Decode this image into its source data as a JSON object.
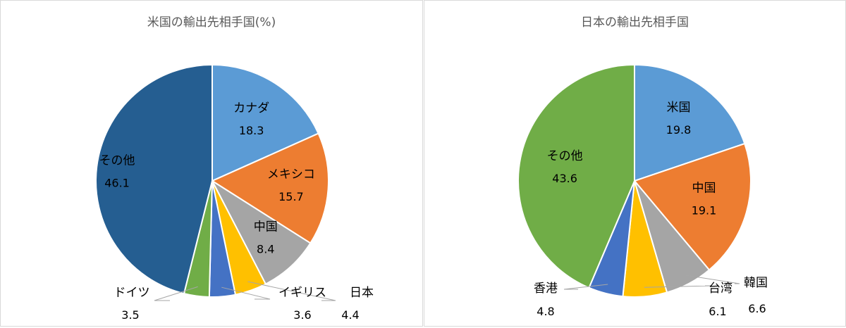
{
  "chart_data": [
    {
      "type": "pie",
      "title": "米国の輸出先相手国(%)",
      "categories": [
        "カナダ",
        "メキシコ",
        "中国",
        "日本",
        "イギリス",
        "ドイツ",
        "その他"
      ],
      "values": [
        18.3,
        15.7,
        8.4,
        4.4,
        3.6,
        3.5,
        46.1
      ],
      "colors": [
        "#5b9bd5",
        "#ed7d31",
        "#a5a5a5",
        "#ffc000",
        "#4472c4",
        "#70ad47",
        "#255e91"
      ],
      "legend": "none"
    },
    {
      "type": "pie",
      "title": "日本の輸出先相手国",
      "categories": [
        "米国",
        "中国",
        "韓国",
        "台湾",
        "香港",
        "その他"
      ],
      "values": [
        19.8,
        19.1,
        6.6,
        6.1,
        4.8,
        43.6
      ],
      "colors": [
        "#5b9bd5",
        "#ed7d31",
        "#a5a5a5",
        "#ffc000",
        "#4472c4",
        "#70ad47"
      ],
      "legend": "none"
    }
  ]
}
